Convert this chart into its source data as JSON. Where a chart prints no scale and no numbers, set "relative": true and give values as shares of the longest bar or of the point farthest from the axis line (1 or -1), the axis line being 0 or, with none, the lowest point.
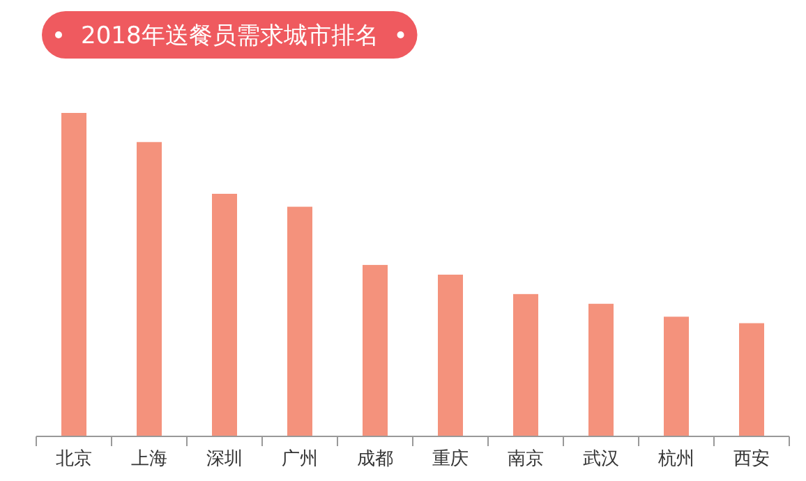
{
  "chart_data": {
    "type": "bar",
    "title": "2018年送餐员需求城市排名",
    "relative": true,
    "color": "#f4927c",
    "categories": [
      "北京",
      "上海",
      "深圳",
      "广州",
      "成都",
      "重庆",
      "南京",
      "武汉",
      "杭州",
      "西安"
    ],
    "values": [
      1,
      0.91,
      0.75,
      0.71,
      0.53,
      0.5,
      0.44,
      0.41,
      0.37,
      0.35
    ]
  }
}
